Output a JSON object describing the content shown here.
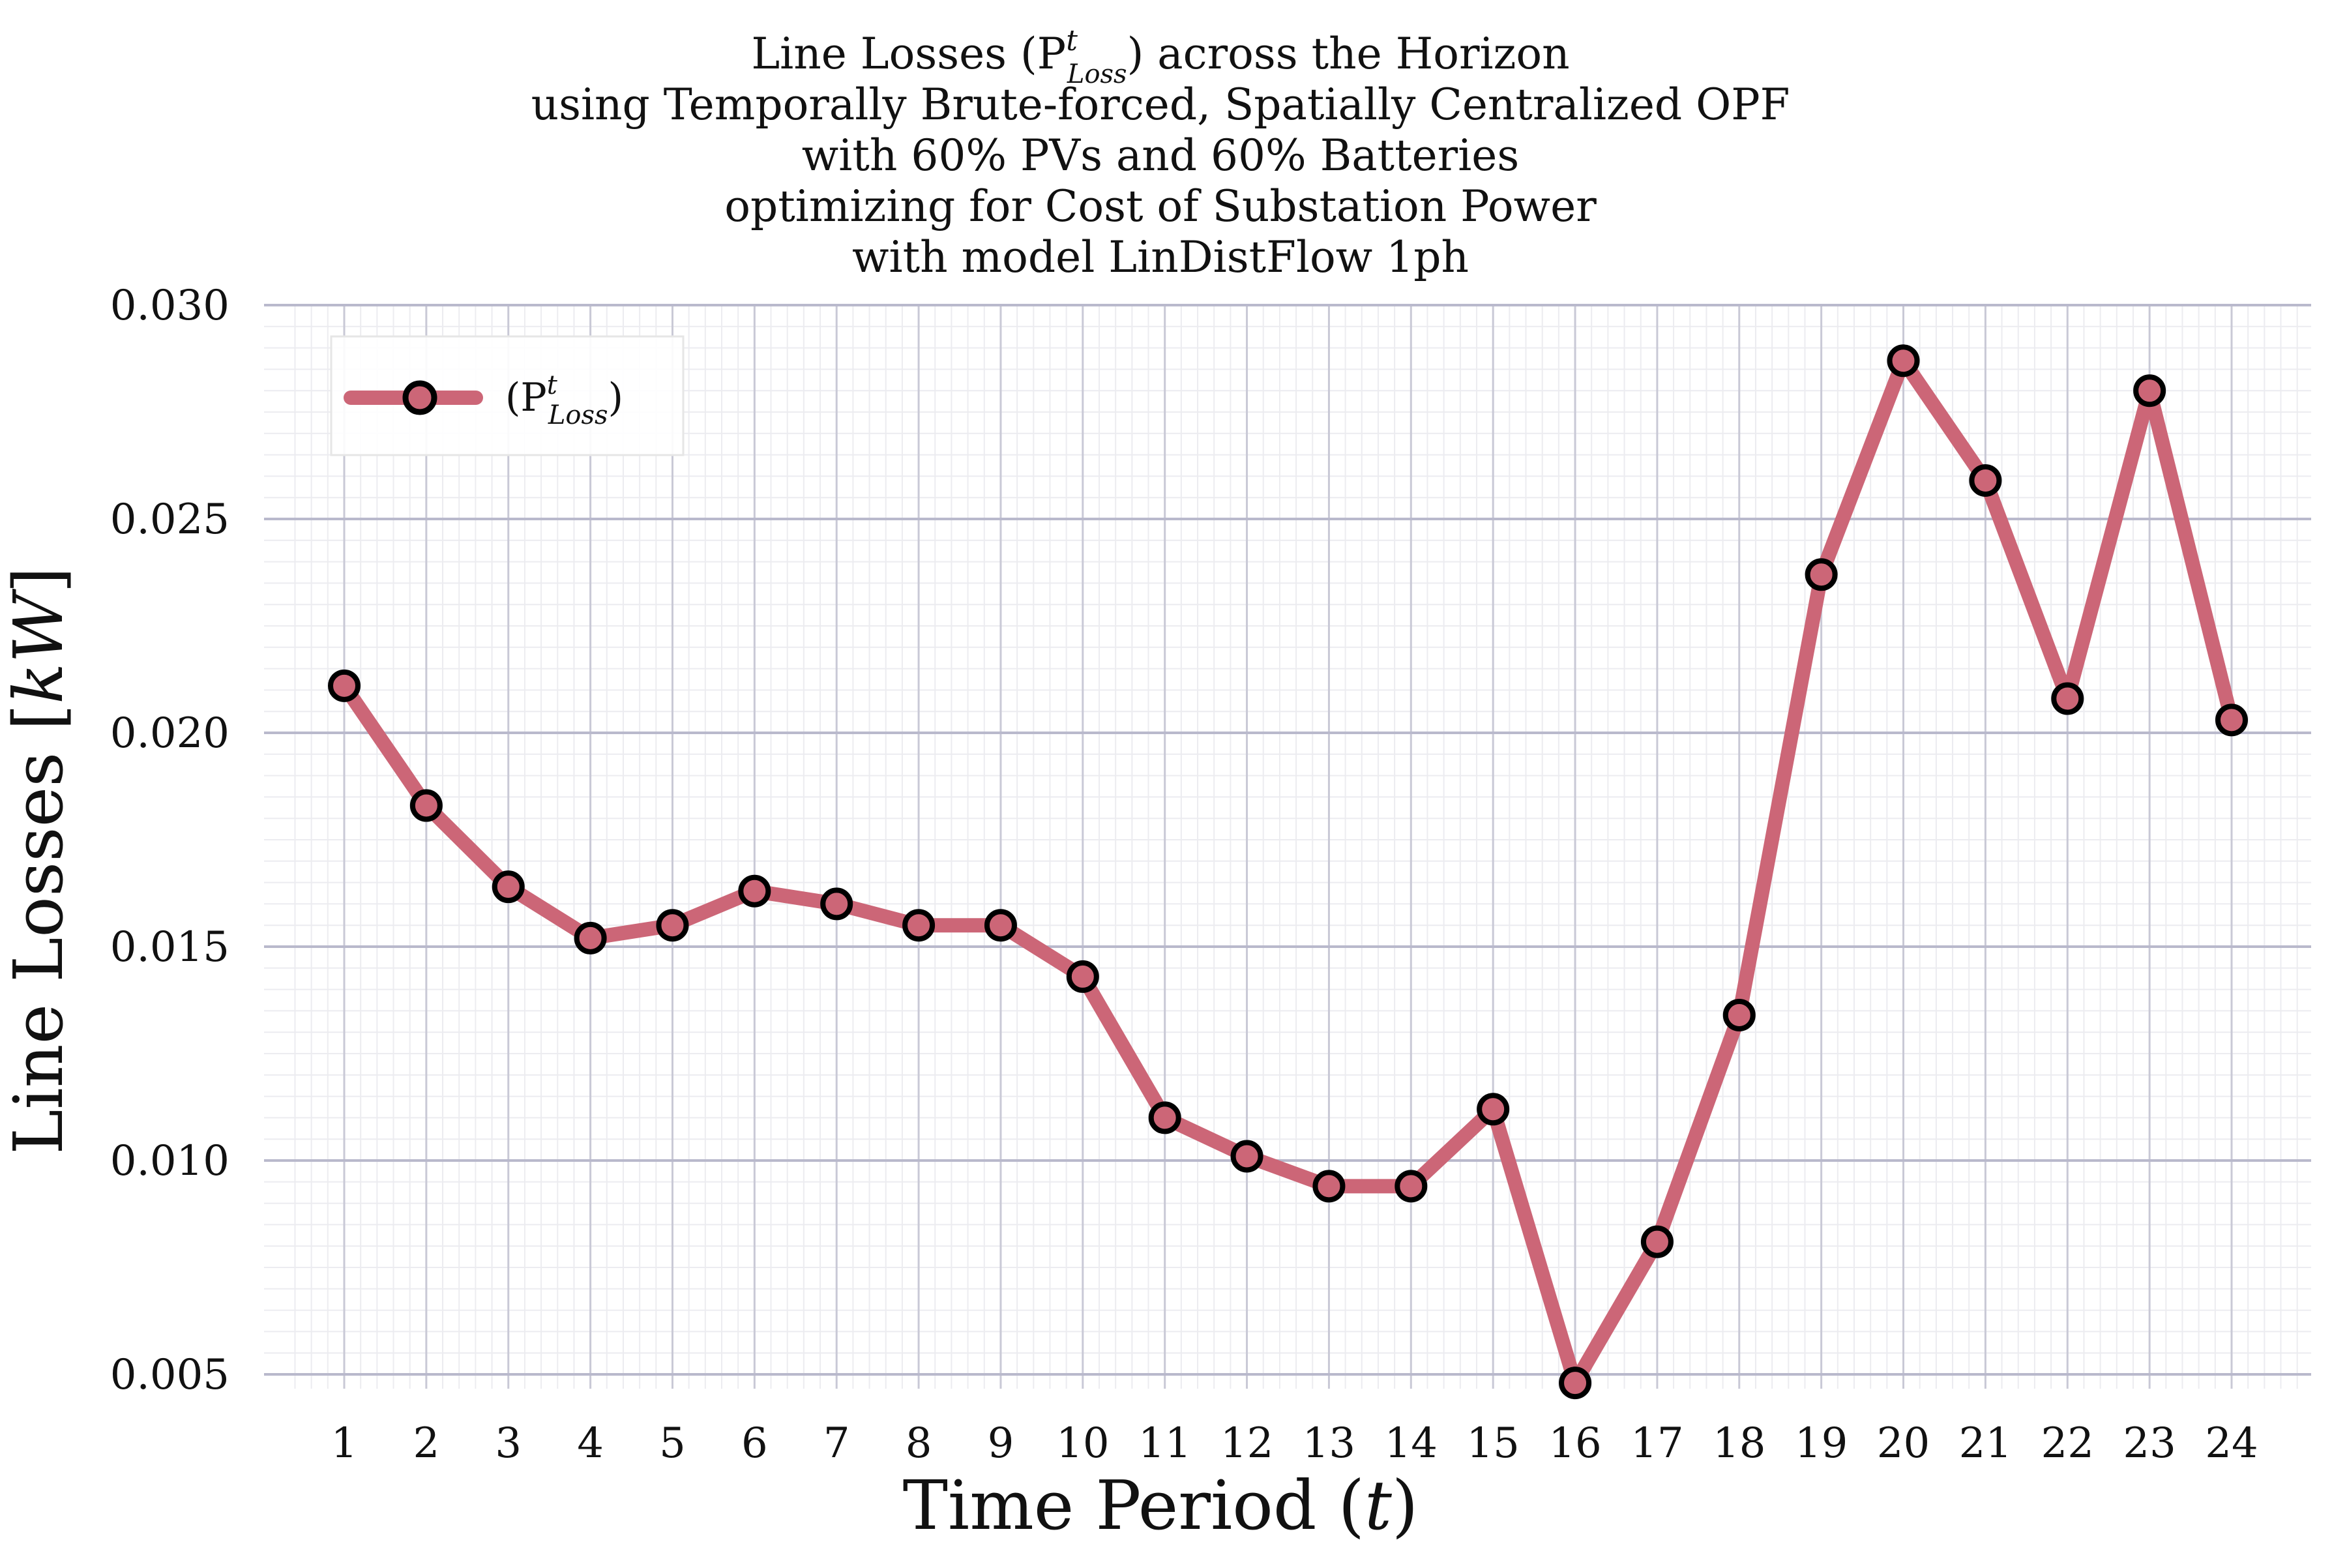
{
  "chart_data": {
    "type": "line",
    "title_lines": [
      "Line Losses (P",
      "using Temporally Brute-forced, Spatially Centralized OPF",
      "with 60% PVs and 60% Batteries",
      "optimizing for Cost of Substation Power",
      "with model LinDistFlow 1ph"
    ],
    "title_first_line_parts": {
      "pre": "Line Losses (P",
      "sup": "t",
      "sub": "Loss",
      "post": ") across the Horizon"
    },
    "xlabel": {
      "pre": "Time Period (",
      "var": "t",
      "post": ")"
    },
    "ylabel": {
      "pre": "Line Losses [",
      "var": "kW",
      "post": "]"
    },
    "x": [
      1,
      2,
      3,
      4,
      5,
      6,
      7,
      8,
      9,
      10,
      11,
      12,
      13,
      14,
      15,
      16,
      17,
      18,
      19,
      20,
      21,
      22,
      23,
      24
    ],
    "x_tick_labels": [
      "1",
      "2",
      "3",
      "4",
      "5",
      "6",
      "7",
      "8",
      "9",
      "10",
      "11",
      "12",
      "13",
      "14",
      "15",
      "16",
      "17",
      "18",
      "19",
      "20",
      "21",
      "22",
      "23",
      "24"
    ],
    "y_ticks": [
      0.005,
      0.01,
      0.015,
      0.02,
      0.025,
      0.03
    ],
    "y_tick_labels": [
      "0.005",
      "0.010",
      "0.015",
      "0.020",
      "0.025",
      "0.030"
    ],
    "ylim": [
      0.005,
      0.03
    ],
    "xlim": [
      0.2,
      24.8
    ],
    "grid": true,
    "legend_position": "top-left",
    "series": [
      {
        "name": {
          "pre": "(P",
          "sup": "t",
          "sub": "Loss",
          "post": ")"
        },
        "color": "#cc6677",
        "marker_edge": "#000000",
        "marker_face": "#cc6677",
        "values": [
          0.0211,
          0.0183,
          0.0164,
          0.0152,
          0.0155,
          0.0163,
          0.016,
          0.0155,
          0.0155,
          0.0143,
          0.011,
          0.0101,
          0.0094,
          0.0094,
          0.0112,
          0.0048,
          0.0081,
          0.0134,
          0.0237,
          0.0287,
          0.0259,
          0.0208,
          0.028,
          0.0203
        ]
      }
    ]
  }
}
